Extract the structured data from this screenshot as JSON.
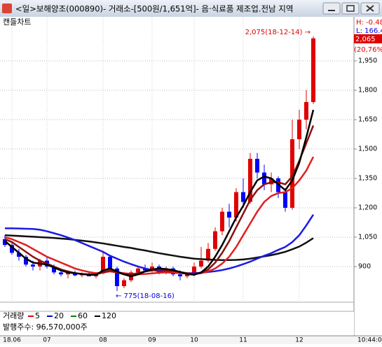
{
  "window_title": "<일>보해양조(000890)- 거래소-[500원/1,651억]- 음·식료품 제조업.전남 지역",
  "chart_label": "캔들차트",
  "side_info": {
    "high": "H: -0.48",
    "low": "L: 166.4",
    "last": "2,065",
    "change": "(20,76%)"
  },
  "bottom": {
    "volume_title": "거래량",
    "volume_ma": [
      {
        "name": "5",
        "color": "#e00000"
      },
      {
        "name": "20",
        "color": "#0000e0"
      },
      {
        "name": "60",
        "color": "#008000"
      },
      {
        "name": "120",
        "color": "#000000"
      }
    ],
    "shares": "발행주수: 96,570,000주",
    "clock": "10:44:0"
  },
  "chart_data": {
    "type": "candlestick",
    "up_color": "#e00000",
    "down_color": "#0000ff",
    "grid": true,
    "categories": [
      null,
      "18.06",
      null,
      null,
      null,
      null,
      "07",
      null,
      null,
      null,
      null,
      null,
      null,
      null,
      "08",
      null,
      null,
      null,
      null,
      null,
      null,
      "09",
      null,
      null,
      null,
      null,
      null,
      "10",
      null,
      null,
      null,
      null,
      null,
      null,
      "11",
      null,
      null,
      null,
      null,
      null,
      null,
      null,
      "12",
      null,
      null
    ],
    "candles": [
      [
        1040,
        1060,
        1000,
        1010
      ],
      [
        1010,
        1020,
        960,
        970
      ],
      [
        970,
        990,
        930,
        950
      ],
      [
        950,
        960,
        900,
        910
      ],
      [
        910,
        930,
        880,
        900
      ],
      [
        900,
        940,
        880,
        930
      ],
      [
        930,
        950,
        890,
        900
      ],
      [
        900,
        910,
        860,
        870
      ],
      [
        870,
        890,
        850,
        860
      ],
      [
        860,
        880,
        840,
        870
      ],
      [
        870,
        880,
        850,
        855
      ],
      [
        855,
        870,
        845,
        860
      ],
      [
        860,
        875,
        850,
        850
      ],
      [
        850,
        870,
        840,
        865
      ],
      [
        865,
        980,
        860,
        950
      ],
      [
        950,
        960,
        880,
        890
      ],
      [
        890,
        900,
        775,
        800
      ],
      [
        800,
        840,
        790,
        830
      ],
      [
        830,
        880,
        820,
        870
      ],
      [
        870,
        900,
        860,
        890
      ],
      [
        890,
        910,
        870,
        880
      ],
      [
        880,
        920,
        870,
        900
      ],
      [
        900,
        910,
        860,
        870
      ],
      [
        870,
        900,
        860,
        890
      ],
      [
        890,
        900,
        850,
        860
      ],
      [
        860,
        880,
        830,
        850
      ],
      [
        850,
        870,
        840,
        860
      ],
      [
        860,
        920,
        850,
        900
      ],
      [
        900,
        1000,
        890,
        930
      ],
      [
        930,
        1020,
        920,
        990
      ],
      [
        990,
        1100,
        980,
        1080
      ],
      [
        1080,
        1200,
        1060,
        1180
      ],
      [
        1180,
        1220,
        1100,
        1150
      ],
      [
        1150,
        1300,
        1130,
        1280
      ],
      [
        1280,
        1350,
        1200,
        1230
      ],
      [
        1230,
        1480,
        1220,
        1450
      ],
      [
        1450,
        1480,
        1350,
        1380
      ],
      [
        1380,
        1420,
        1290,
        1320
      ],
      [
        1320,
        1380,
        1280,
        1350
      ],
      [
        1350,
        1360,
        1250,
        1280
      ],
      [
        1280,
        1300,
        1180,
        1200
      ],
      [
        1200,
        1650,
        1190,
        1550
      ],
      [
        1550,
        1700,
        1500,
        1650
      ],
      [
        1650,
        1800,
        1600,
        1740
      ],
      [
        1740,
        2075,
        1730,
        2065
      ]
    ],
    "moving_averages": [
      {
        "color": "#101010",
        "values": [
          1060,
          1058,
          1056,
          1054,
          1052,
          1050,
          1048,
          1046,
          1043,
          1040,
          1036,
          1032,
          1028,
          1023,
          1018,
          1012,
          1006,
          1000,
          995,
          988,
          982,
          975,
          968,
          962,
          956,
          950,
          945,
          940,
          938,
          936,
          934,
          933,
          933,
          934,
          936,
          940,
          946,
          952,
          958,
          966,
          975,
          988,
          1002,
          1022,
          1045
        ]
      },
      {
        "color": "#1a1ae6",
        "values": [
          1095,
          1095,
          1094,
          1093,
          1092,
          1088,
          1080,
          1070,
          1060,
          1048,
          1035,
          1020,
          1005,
          990,
          975,
          955,
          940,
          925,
          912,
          900,
          890,
          882,
          876,
          872,
          870,
          868,
          866,
          866,
          868,
          872,
          876,
          882,
          890,
          900,
          912,
          925,
          940,
          955,
          968,
          985,
          1000,
          1025,
          1060,
          1110,
          1165
        ]
      },
      {
        "color": "#e02020",
        "values": [
          1050,
          1040,
          1025,
          1010,
          990,
          970,
          950,
          935,
          920,
          905,
          890,
          880,
          872,
          866,
          870,
          875,
          870,
          866,
          862,
          860,
          862,
          865,
          868,
          870,
          868,
          866,
          864,
          862,
          866,
          875,
          890,
          915,
          950,
          1000,
          1060,
          1120,
          1180,
          1230,
          1260,
          1275,
          1280,
          1300,
          1340,
          1390,
          1460
        ]
      },
      {
        "color": "#8b1010",
        "values": [
          1040,
          1025,
          1000,
          975,
          950,
          930,
          915,
          900,
          885,
          875,
          866,
          862,
          860,
          860,
          870,
          880,
          870,
          860,
          860,
          866,
          875,
          880,
          885,
          880,
          878,
          872,
          866,
          862,
          868,
          885,
          920,
          970,
          1030,
          1100,
          1170,
          1240,
          1290,
          1320,
          1330,
          1330,
          1320,
          1360,
          1440,
          1530,
          1620
        ]
      },
      {
        "color": "#000000",
        "values": [
          1030,
          1000,
          970,
          940,
          920,
          915,
          910,
          895,
          880,
          870,
          866,
          862,
          858,
          857,
          880,
          890,
          875,
          860,
          850,
          860,
          875,
          885,
          890,
          887,
          882,
          872,
          862,
          858,
          870,
          900,
          950,
          1010,
          1080,
          1150,
          1210,
          1280,
          1340,
          1360,
          1350,
          1320,
          1290,
          1340,
          1430,
          1560,
          1700
        ]
      }
    ],
    "ylim": [
      732,
      2161
    ],
    "yticks": [
      900,
      {
        "value": 1050,
        "label": "1,050"
      },
      {
        "value": 1200,
        "label": "1,200"
      },
      {
        "value": 1350,
        "label": "1,350"
      },
      {
        "value": 1500,
        "label": "1,500"
      },
      {
        "value": 1650,
        "label": "1,650"
      },
      {
        "value": 1800,
        "label": "1,800"
      },
      {
        "value": 1950,
        "label": "1,950"
      }
    ],
    "annotations": [
      {
        "text": "2,075(18-12-14) →",
        "color": "#e00000"
      },
      {
        "text": "← 775(18-08-16)",
        "color": "#0000e0"
      }
    ]
  }
}
